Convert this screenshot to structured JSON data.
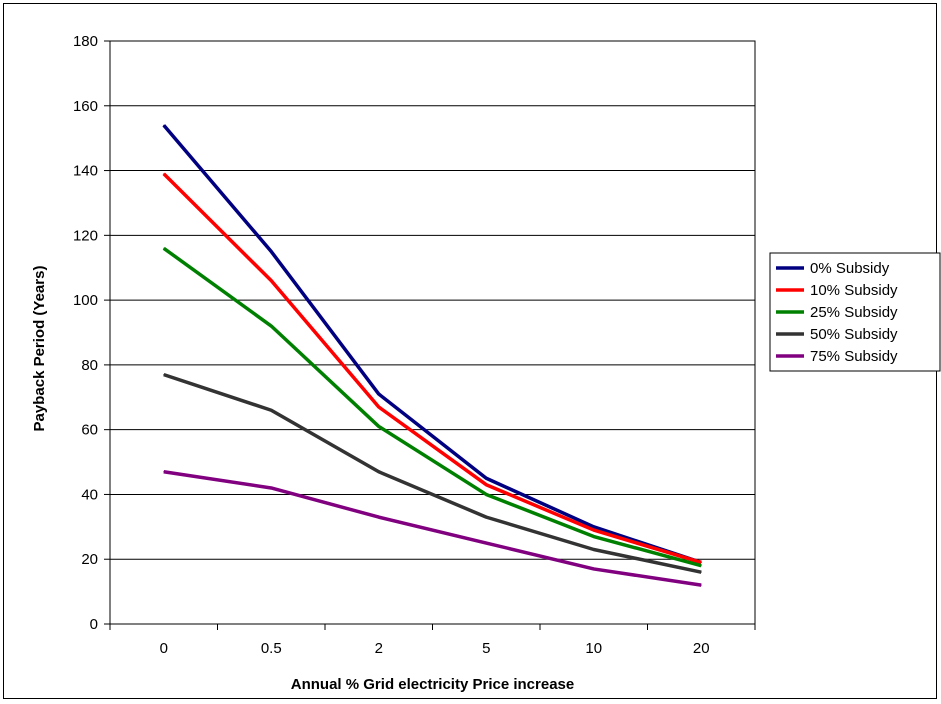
{
  "chart_data": {
    "type": "line",
    "title": "",
    "xlabel": "Annual % Grid electricity Price increase",
    "ylabel": "Payback Period (Years)",
    "categories": [
      "0",
      "0.5",
      "2",
      "5",
      "10",
      "20"
    ],
    "ylim": [
      0,
      180
    ],
    "yticks": [
      0,
      20,
      40,
      60,
      80,
      100,
      120,
      140,
      160,
      180
    ],
    "grid": true,
    "legend_position": "right",
    "series": [
      {
        "name": "0% Subsidy",
        "color": "#000080",
        "values": [
          154,
          115,
          71,
          45,
          30,
          19
        ]
      },
      {
        "name": "10% Subsidy",
        "color": "#ff0000",
        "values": [
          139,
          106,
          67,
          43,
          29,
          19
        ]
      },
      {
        "name": "25% Subsidy",
        "color": "#008000",
        "values": [
          116,
          92,
          61,
          40,
          27,
          18
        ]
      },
      {
        "name": "50% Subsidy",
        "color": "#333333",
        "values": [
          77,
          66,
          47,
          33,
          23,
          16
        ]
      },
      {
        "name": "75% Subsidy",
        "color": "#800080",
        "values": [
          47,
          42,
          33,
          25,
          17,
          12
        ]
      }
    ]
  }
}
